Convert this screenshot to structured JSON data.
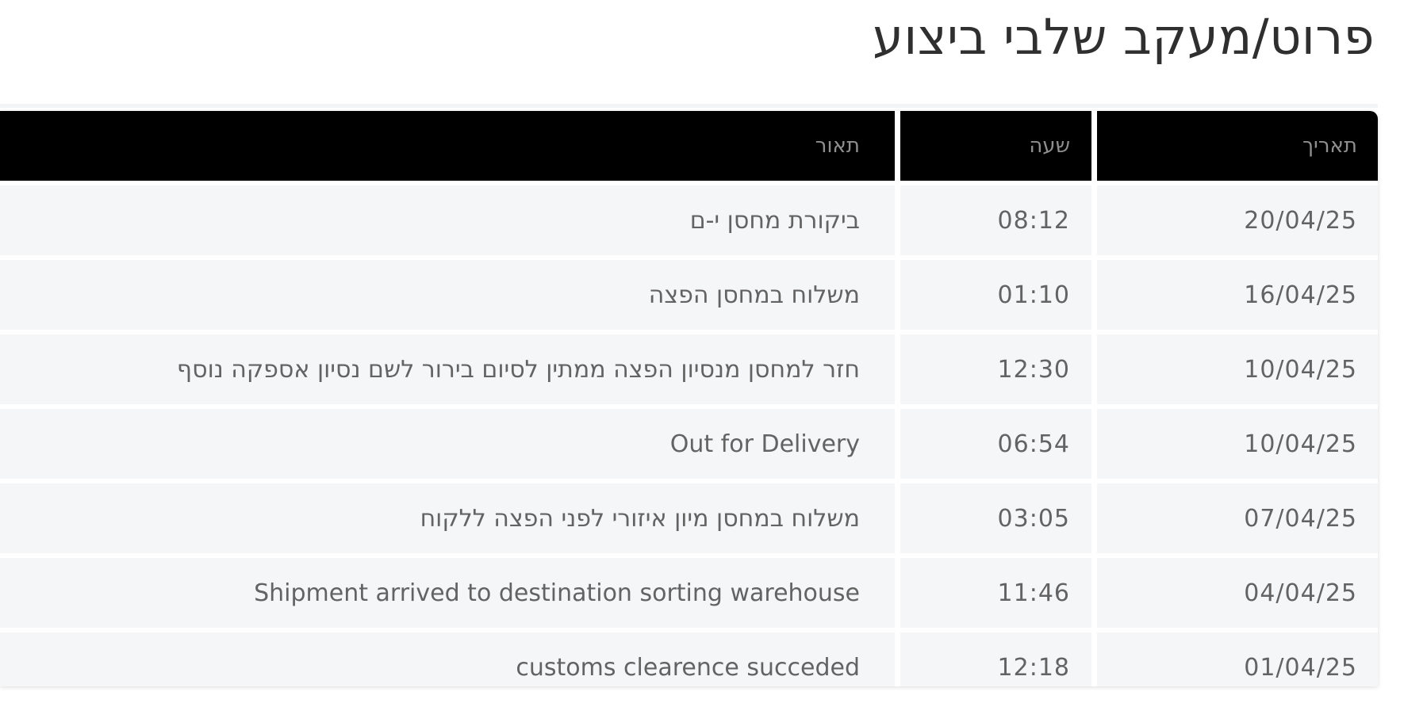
{
  "page": {
    "title": "פרוט/מעקב שלבי ביצוע"
  },
  "table": {
    "headers": {
      "date": "תאריך",
      "time": "שעה",
      "desc": "תאור"
    },
    "rows": [
      {
        "date": "20/04/25",
        "time": "08:12",
        "desc": "ביקורת מחסן י-ם"
      },
      {
        "date": "16/04/25",
        "time": "01:10",
        "desc": "משלוח במחסן הפצה"
      },
      {
        "date": "10/04/25",
        "time": "12:30",
        "desc": "חזר למחסן מנסיון הפצה ממתין לסיום בירור לשם נסיון אספקה נוסף"
      },
      {
        "date": "10/04/25",
        "time": "06:54",
        "desc": "Out for Delivery"
      },
      {
        "date": "07/04/25",
        "time": "03:05",
        "desc": "משלוח במחסן מיון איזורי לפני הפצה ללקוח"
      },
      {
        "date": "04/04/25",
        "time": "11:46",
        "desc": "Shipment arrived to destination sorting warehouse"
      },
      {
        "date": "01/04/25",
        "time": "12:18",
        "desc": "customs clearence succeded"
      }
    ],
    "colors": {
      "header_bg": "#000000",
      "header_text": "#8f8f8f",
      "row_bg": "#f5f6f8",
      "row_text": "#636363",
      "title_text": "#2f2f2f",
      "page_bg": "#ffffff"
    }
  }
}
